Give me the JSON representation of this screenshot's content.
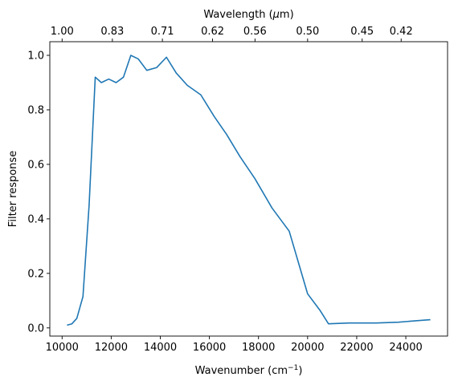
{
  "chart_data": {
    "type": "line",
    "title": "",
    "xlabel": "Wavenumber (cm",
    "xlabel_sup": "−1",
    "xlabel_suffix": ")",
    "top_xlabel": "Wavelength (",
    "top_xlabel_mu": "μ",
    "top_xlabel_suffix": "m)",
    "ylabel": "Filter response",
    "xlim": [
      9500,
      25700
    ],
    "ylim": [
      -0.03,
      1.05
    ],
    "grid": false,
    "line_color": "#1f77b4",
    "x_ticks": [
      10000,
      12000,
      14000,
      16000,
      18000,
      20000,
      22000,
      24000
    ],
    "x_tick_labels": [
      "10000",
      "12000",
      "14000",
      "16000",
      "18000",
      "20000",
      "22000",
      "24000"
    ],
    "y_ticks": [
      0.0,
      0.2,
      0.4,
      0.6,
      0.8,
      1.0
    ],
    "y_tick_labels": [
      "0.0",
      "0.2",
      "0.4",
      "0.6",
      "0.8",
      "1.0"
    ],
    "top_ticks": [
      10000,
      12048,
      14085,
      16129,
      17857,
      20000,
      22222,
      23810
    ],
    "top_tick_labels": [
      "1.00",
      "0.83",
      "0.71",
      "0.62",
      "0.56",
      "0.50",
      "0.45",
      "0.42"
    ],
    "series": [
      {
        "x": [
          10200,
          10400,
          10600,
          10850,
          11100,
          11350,
          11600,
          11900,
          12200,
          12500,
          12800,
          13100,
          13450,
          13850,
          14250,
          14650,
          15100,
          15650,
          16200,
          16700,
          17250,
          17850,
          18550,
          19250,
          20000,
          20500,
          20850,
          21700,
          22800,
          23700,
          24400,
          25000
        ],
        "y": [
          0.01,
          0.015,
          0.035,
          0.115,
          0.45,
          0.92,
          0.9,
          0.913,
          0.9,
          0.92,
          1.0,
          0.987,
          0.945,
          0.955,
          0.993,
          0.935,
          0.89,
          0.855,
          0.775,
          0.71,
          0.628,
          0.548,
          0.44,
          0.355,
          0.125,
          0.065,
          0.015,
          0.018,
          0.018,
          0.021,
          0.026,
          0.03
        ]
      }
    ]
  }
}
